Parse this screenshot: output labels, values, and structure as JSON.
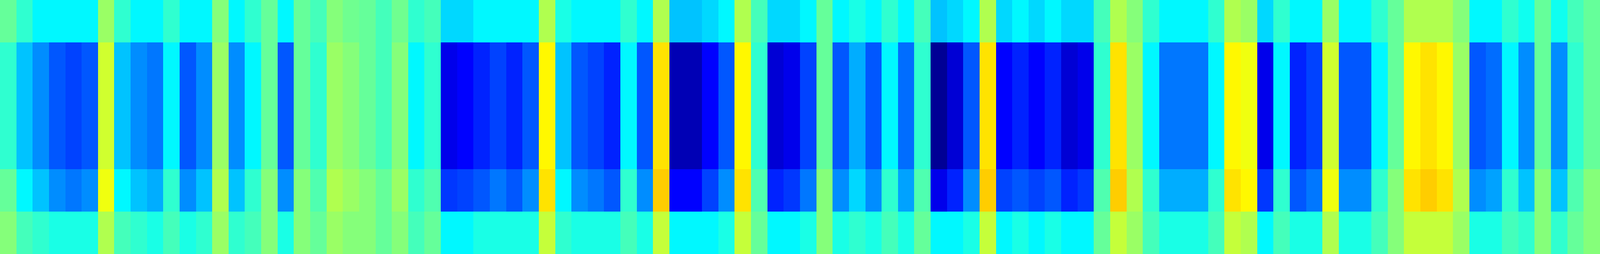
{
  "chart_data": {
    "type": "heatmap",
    "tick_labels": false,
    "zlim": [
      0.1,
      1.05
    ],
    "cells": [
      [
        0.55,
        0.5,
        0.45,
        0.45,
        0.45,
        0.45,
        0.6,
        0.5,
        0.45,
        0.45,
        0.5,
        0.45,
        0.45,
        0.58,
        0.45,
        0.5,
        0.55,
        0.45,
        0.55,
        0.52,
        0.58,
        0.56,
        0.55,
        0.52,
        0.56,
        0.5,
        0.52,
        0.42,
        0.42,
        0.45,
        0.45,
        0.45,
        0.45,
        0.62,
        0.48,
        0.45,
        0.45,
        0.45,
        0.5,
        0.45,
        0.62,
        0.4,
        0.4,
        0.42,
        0.45,
        0.62,
        0.52,
        0.42,
        0.42,
        0.45,
        0.55,
        0.45,
        0.48,
        0.45,
        0.5,
        0.45,
        0.52,
        0.4,
        0.42,
        0.45,
        0.62,
        0.42,
        0.45,
        0.42,
        0.45,
        0.42,
        0.42,
        0.52,
        0.62,
        0.58,
        0.5,
        0.45,
        0.45,
        0.45,
        0.5,
        0.62,
        0.6,
        0.42,
        0.5,
        0.45,
        0.45,
        0.6,
        0.45,
        0.45,
        0.5,
        0.55,
        0.62,
        0.62,
        0.62,
        0.58,
        0.45,
        0.45,
        0.5,
        0.47,
        0.55,
        0.47,
        0.52,
        0.55
      ],
      [
        0.5,
        0.4,
        0.35,
        0.3,
        0.28,
        0.3,
        0.65,
        0.4,
        0.35,
        0.33,
        0.45,
        0.3,
        0.35,
        0.6,
        0.35,
        0.45,
        0.55,
        0.3,
        0.55,
        0.5,
        0.6,
        0.58,
        0.55,
        0.52,
        0.58,
        0.45,
        0.5,
        0.2,
        0.22,
        0.25,
        0.28,
        0.25,
        0.3,
        0.7,
        0.4,
        0.3,
        0.28,
        0.25,
        0.45,
        0.3,
        0.72,
        0.15,
        0.15,
        0.22,
        0.3,
        0.7,
        0.5,
        0.18,
        0.2,
        0.28,
        0.55,
        0.3,
        0.38,
        0.3,
        0.45,
        0.32,
        0.5,
        0.12,
        0.18,
        0.3,
        0.72,
        0.22,
        0.25,
        0.22,
        0.25,
        0.18,
        0.2,
        0.5,
        0.72,
        0.6,
        0.45,
        0.33,
        0.33,
        0.33,
        0.45,
        0.7,
        0.68,
        0.2,
        0.45,
        0.25,
        0.28,
        0.65,
        0.3,
        0.3,
        0.45,
        0.55,
        0.7,
        0.72,
        0.7,
        0.6,
        0.3,
        0.32,
        0.45,
        0.35,
        0.55,
        0.35,
        0.5,
        0.55
      ],
      [
        0.5,
        0.4,
        0.35,
        0.3,
        0.28,
        0.3,
        0.65,
        0.4,
        0.35,
        0.33,
        0.45,
        0.3,
        0.35,
        0.6,
        0.35,
        0.45,
        0.55,
        0.3,
        0.55,
        0.5,
        0.6,
        0.58,
        0.55,
        0.52,
        0.58,
        0.45,
        0.5,
        0.2,
        0.22,
        0.25,
        0.28,
        0.25,
        0.3,
        0.7,
        0.4,
        0.3,
        0.28,
        0.25,
        0.45,
        0.3,
        0.72,
        0.15,
        0.15,
        0.22,
        0.3,
        0.7,
        0.5,
        0.18,
        0.2,
        0.28,
        0.55,
        0.3,
        0.38,
        0.3,
        0.45,
        0.32,
        0.5,
        0.12,
        0.18,
        0.3,
        0.72,
        0.22,
        0.25,
        0.22,
        0.25,
        0.18,
        0.2,
        0.5,
        0.72,
        0.6,
        0.45,
        0.33,
        0.33,
        0.33,
        0.45,
        0.7,
        0.68,
        0.2,
        0.45,
        0.25,
        0.28,
        0.65,
        0.3,
        0.3,
        0.45,
        0.55,
        0.7,
        0.72,
        0.7,
        0.6,
        0.3,
        0.32,
        0.45,
        0.35,
        0.55,
        0.35,
        0.5,
        0.55
      ],
      [
        0.5,
        0.4,
        0.35,
        0.3,
        0.28,
        0.3,
        0.65,
        0.4,
        0.35,
        0.33,
        0.45,
        0.3,
        0.35,
        0.6,
        0.35,
        0.45,
        0.55,
        0.3,
        0.55,
        0.5,
        0.6,
        0.58,
        0.55,
        0.52,
        0.58,
        0.45,
        0.5,
        0.2,
        0.22,
        0.25,
        0.28,
        0.25,
        0.3,
        0.7,
        0.4,
        0.3,
        0.28,
        0.25,
        0.45,
        0.3,
        0.72,
        0.15,
        0.15,
        0.22,
        0.3,
        0.7,
        0.5,
        0.18,
        0.2,
        0.28,
        0.55,
        0.3,
        0.38,
        0.3,
        0.45,
        0.32,
        0.5,
        0.12,
        0.18,
        0.3,
        0.72,
        0.22,
        0.25,
        0.22,
        0.25,
        0.18,
        0.2,
        0.5,
        0.72,
        0.6,
        0.45,
        0.33,
        0.33,
        0.33,
        0.45,
        0.7,
        0.68,
        0.2,
        0.45,
        0.25,
        0.28,
        0.65,
        0.3,
        0.3,
        0.45,
        0.55,
        0.7,
        0.72,
        0.7,
        0.6,
        0.3,
        0.32,
        0.45,
        0.35,
        0.55,
        0.35,
        0.5,
        0.55
      ],
      [
        0.55,
        0.45,
        0.4,
        0.35,
        0.33,
        0.35,
        0.68,
        0.45,
        0.4,
        0.38,
        0.5,
        0.35,
        0.4,
        0.62,
        0.4,
        0.5,
        0.58,
        0.35,
        0.58,
        0.53,
        0.62,
        0.6,
        0.58,
        0.55,
        0.6,
        0.5,
        0.53,
        0.27,
        0.28,
        0.3,
        0.33,
        0.3,
        0.35,
        0.72,
        0.45,
        0.35,
        0.33,
        0.3,
        0.5,
        0.35,
        0.74,
        0.22,
        0.22,
        0.28,
        0.35,
        0.72,
        0.53,
        0.25,
        0.27,
        0.33,
        0.58,
        0.35,
        0.42,
        0.35,
        0.5,
        0.37,
        0.53,
        0.2,
        0.25,
        0.35,
        0.74,
        0.28,
        0.3,
        0.28,
        0.3,
        0.25,
        0.27,
        0.53,
        0.74,
        0.62,
        0.5,
        0.38,
        0.38,
        0.38,
        0.5,
        0.72,
        0.7,
        0.27,
        0.5,
        0.3,
        0.33,
        0.68,
        0.35,
        0.35,
        0.5,
        0.58,
        0.72,
        0.74,
        0.72,
        0.62,
        0.35,
        0.37,
        0.5,
        0.4,
        0.58,
        0.4,
        0.53,
        0.58
      ],
      [
        0.58,
        0.52,
        0.5,
        0.48,
        0.48,
        0.48,
        0.62,
        0.52,
        0.5,
        0.48,
        0.52,
        0.48,
        0.5,
        0.6,
        0.5,
        0.52,
        0.58,
        0.48,
        0.58,
        0.55,
        0.6,
        0.58,
        0.58,
        0.55,
        0.58,
        0.52,
        0.55,
        0.45,
        0.45,
        0.48,
        0.48,
        0.48,
        0.48,
        0.64,
        0.5,
        0.48,
        0.48,
        0.48,
        0.52,
        0.48,
        0.64,
        0.45,
        0.45,
        0.45,
        0.48,
        0.64,
        0.55,
        0.45,
        0.45,
        0.48,
        0.58,
        0.48,
        0.5,
        0.48,
        0.52,
        0.48,
        0.55,
        0.45,
        0.45,
        0.48,
        0.64,
        0.45,
        0.48,
        0.45,
        0.48,
        0.45,
        0.45,
        0.55,
        0.64,
        0.6,
        0.52,
        0.48,
        0.48,
        0.48,
        0.52,
        0.64,
        0.62,
        0.45,
        0.52,
        0.48,
        0.48,
        0.62,
        0.48,
        0.48,
        0.52,
        0.58,
        0.64,
        0.64,
        0.64,
        0.6,
        0.48,
        0.48,
        0.52,
        0.5,
        0.58,
        0.5,
        0.55,
        0.58
      ]
    ]
  }
}
